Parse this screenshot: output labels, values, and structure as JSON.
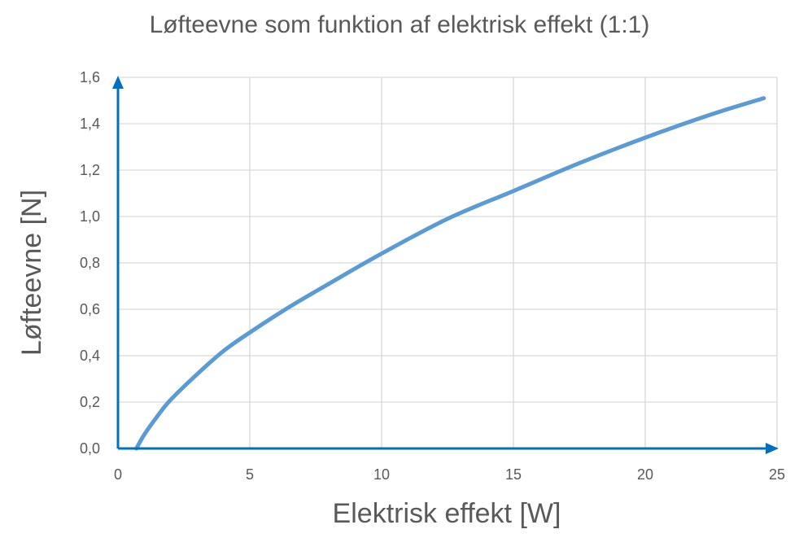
{
  "chart_data": {
    "type": "line",
    "title": "Løfteevne som funktion af elektrisk effekt (1:1)",
    "xlabel": "Elektrisk effekt [W]",
    "ylabel": "Løfteevne [N]",
    "xlim": [
      0,
      25
    ],
    "ylim": [
      0,
      1.6
    ],
    "xticks": [
      "0",
      "5",
      "10",
      "15",
      "20",
      "25"
    ],
    "yticks": [
      "0,0",
      "0,2",
      "0,4",
      "0,6",
      "0,8",
      "1,0",
      "1,2",
      "1,4",
      "1,6"
    ],
    "grid": true,
    "colors": {
      "line": "#5b9bd5",
      "axis": "#0070c0",
      "grid": "#d9d9d9",
      "text": "#595959"
    },
    "series": [
      {
        "x": [
          0.7,
          1.0,
          1.5,
          2.0,
          3.0,
          4.0,
          5.0,
          6.5,
          8.0,
          10.0,
          12.5,
          15.0,
          17.5,
          20.0,
          22.5,
          24.5
        ],
        "y": [
          0.0,
          0.06,
          0.14,
          0.21,
          0.32,
          0.42,
          0.5,
          0.61,
          0.71,
          0.84,
          0.99,
          1.11,
          1.23,
          1.34,
          1.44,
          1.51
        ]
      }
    ]
  }
}
